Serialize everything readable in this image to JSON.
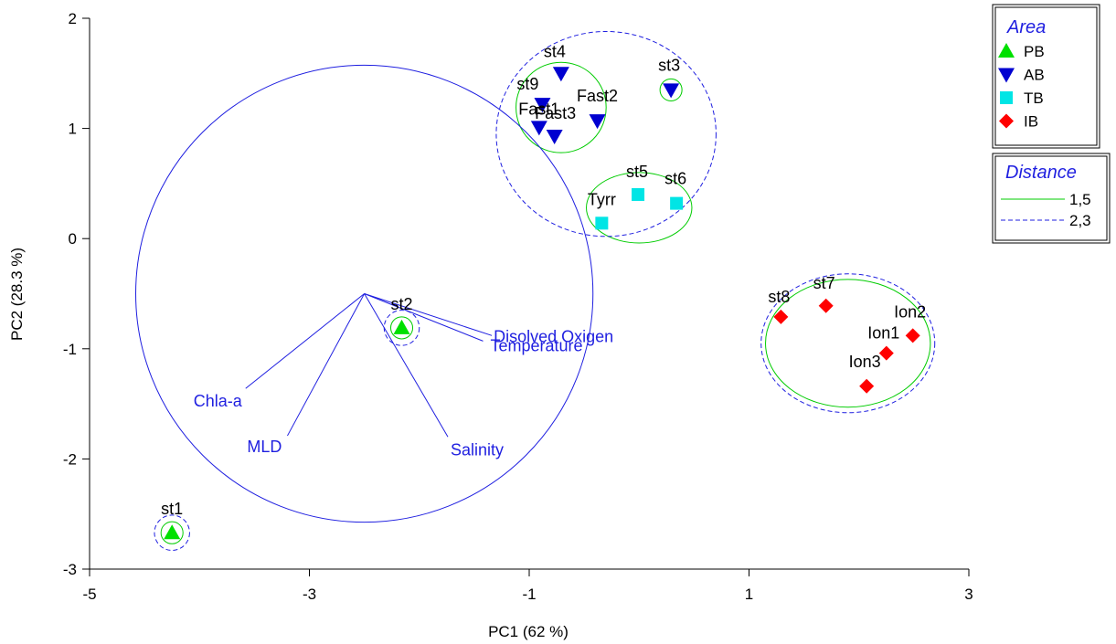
{
  "chart_data": {
    "type": "scatter",
    "xlabel": "PC1 (62 %)",
    "ylabel": "PC2 (28.3 %)",
    "xlim": [
      -5,
      3
    ],
    "ylim": [
      -3,
      2
    ],
    "xticks": [
      -5,
      -3,
      -1,
      1,
      3
    ],
    "yticks": [
      -3,
      -2,
      -1,
      0,
      1,
      2
    ],
    "colors": {
      "PB": "#00e000",
      "AB": "#0000d0",
      "TB": "#00e5e5",
      "IB": "#ff0000",
      "vector": "#1f1fe0",
      "circle15": "#00cc00",
      "circle23": "#1f1fe0"
    },
    "series": [
      {
        "name": "PB",
        "marker": "triangle-up",
        "points": [
          {
            "label": "st1",
            "x": -4.25,
            "y": -2.67
          },
          {
            "label": "st2",
            "x": -2.16,
            "y": -0.81
          }
        ]
      },
      {
        "name": "AB",
        "marker": "triangle-down",
        "points": [
          {
            "label": "st4",
            "x": -0.71,
            "y": 1.5
          },
          {
            "label": "st9",
            "x": -0.88,
            "y": 1.22
          },
          {
            "label": "Fast1",
            "x": -0.91,
            "y": 1.01
          },
          {
            "label": "Fast3",
            "x": -0.77,
            "y": 0.93
          },
          {
            "label": "Fast2",
            "x": -0.38,
            "y": 1.07
          },
          {
            "label": "st3",
            "x": 0.29,
            "y": 1.35
          }
        ]
      },
      {
        "name": "TB",
        "marker": "square",
        "points": [
          {
            "label": "Tyrr",
            "x": -0.34,
            "y": 0.14
          },
          {
            "label": "st5",
            "x": -0.01,
            "y": 0.4
          },
          {
            "label": "st6",
            "x": 0.34,
            "y": 0.32
          }
        ]
      },
      {
        "name": "IB",
        "marker": "diamond",
        "points": [
          {
            "label": "st8",
            "x": 1.29,
            "y": -0.71
          },
          {
            "label": "st7",
            "x": 1.7,
            "y": -0.61
          },
          {
            "label": "Ion1",
            "x": 2.25,
            "y": -1.04
          },
          {
            "label": "Ion2",
            "x": 2.49,
            "y": -0.88
          },
          {
            "label": "Ion3",
            "x": 2.07,
            "y": -1.34
          }
        ]
      }
    ],
    "vectors": {
      "origin": {
        "x": -2.5,
        "y": -0.5
      },
      "circle_radius": 2.08,
      "items": [
        {
          "label": "Disolved Oxigen",
          "x": -1.34,
          "y": -0.88
        },
        {
          "label": "Temperature",
          "x": -1.42,
          "y": -0.93
        },
        {
          "label": "Chla-a",
          "x": -3.58,
          "y": -1.36
        },
        {
          "label": "MLD",
          "x": -3.2,
          "y": -1.79
        },
        {
          "label": "Salinity",
          "x": -1.74,
          "y": -1.8
        }
      ]
    },
    "clusters": [
      {
        "level": "1,5",
        "shape": "ellipse",
        "cx": -4.25,
        "cy": -2.67,
        "rx": 0.1,
        "ry": 0.1
      },
      {
        "level": "2,3",
        "shape": "ellipse",
        "cx": -4.25,
        "cy": -2.67,
        "rx": 0.16,
        "ry": 0.16
      },
      {
        "level": "1,5",
        "shape": "ellipse",
        "cx": -2.16,
        "cy": -0.81,
        "rx": 0.1,
        "ry": 0.1
      },
      {
        "level": "2,3",
        "shape": "ellipse",
        "cx": -2.16,
        "cy": -0.81,
        "rx": 0.16,
        "ry": 0.16
      },
      {
        "level": "1,5",
        "shape": "ellipse",
        "cx": -0.71,
        "cy": 1.19,
        "rx": 0.41,
        "ry": 0.41
      },
      {
        "level": "1,5",
        "shape": "ellipse",
        "cx": 0.29,
        "cy": 1.35,
        "rx": 0.1,
        "ry": 0.1
      },
      {
        "level": "1,5",
        "shape": "ellipse",
        "cx": 0.0,
        "cy": 0.28,
        "rx": 0.48,
        "ry": 0.32
      },
      {
        "level": "2,3",
        "shape": "ellipse",
        "cx": -0.3,
        "cy": 0.95,
        "rx": 1.0,
        "ry": 0.93
      },
      {
        "level": "1,5",
        "shape": "ellipse",
        "cx": 1.9,
        "cy": -0.95,
        "rx": 0.75,
        "ry": 0.58
      },
      {
        "level": "2,3",
        "shape": "ellipse",
        "cx": 1.9,
        "cy": -0.95,
        "rx": 0.79,
        "ry": 0.63
      }
    ],
    "legend": {
      "position": "top-right",
      "area_title": "Area",
      "distance_title": "Distance",
      "distance_items": [
        {
          "label": "1,5",
          "style": "solid"
        },
        {
          "label": "2,3",
          "style": "dashed"
        }
      ]
    }
  }
}
